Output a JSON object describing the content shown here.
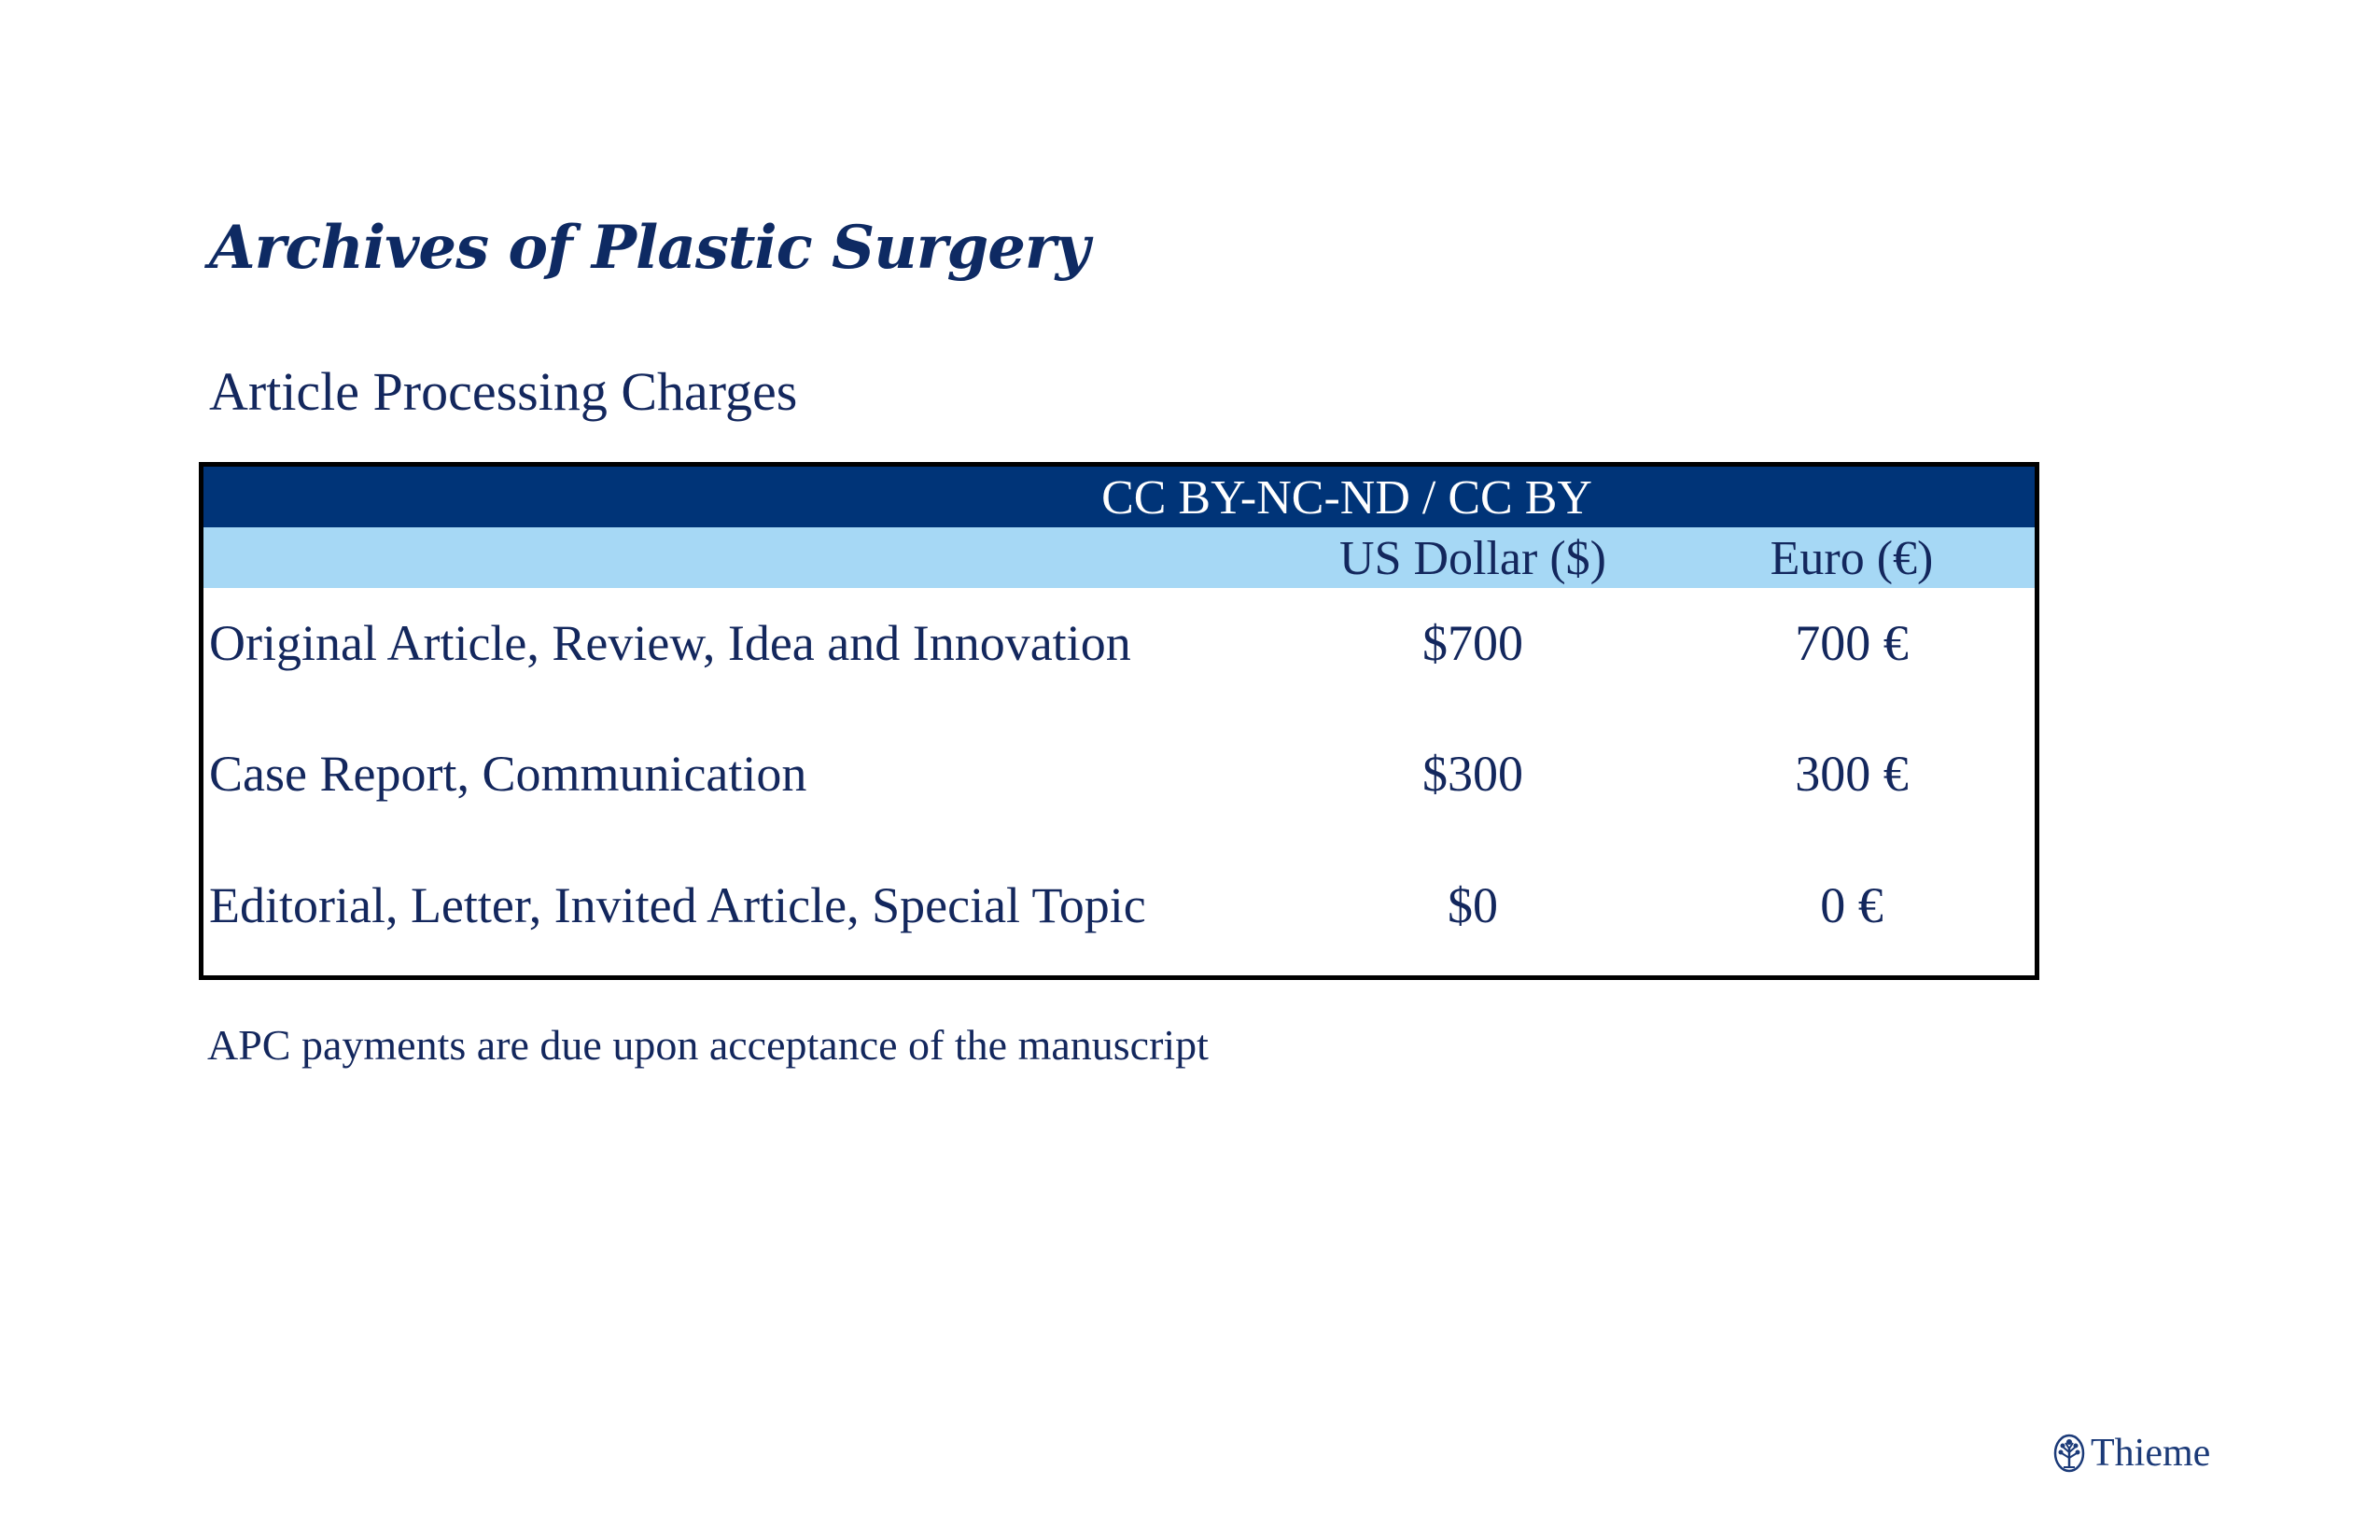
{
  "document": {
    "journal_title": "Archives of Plastic Surgery",
    "subtitle": "Article Processing Charges",
    "footnote": "APC payments are due upon acceptance of the manuscript"
  },
  "table": {
    "license_header": "CC BY-NC-ND / CC BY",
    "currency_headers": {
      "usd": "US Dollar ($)",
      "eur": "Euro (€)"
    },
    "rows": [
      {
        "label": "Original Article, Review, Idea and Innovation",
        "usd": "$700",
        "eur": "700 €"
      },
      {
        "label": "Case Report, Communication",
        "usd": "$300",
        "eur": "300 €"
      },
      {
        "label": "Editorial, Letter, Invited Article, Special Topic",
        "usd": "$0",
        "eur": "0 €"
      }
    ]
  },
  "publisher": {
    "name": "Thieme",
    "logo_icon": "thieme-tree-emblem-icon"
  },
  "colors": {
    "title_navy": "#0e2a63",
    "text_navy": "#13275d",
    "header_dark": "#003478",
    "header_light": "#a6d8f5",
    "border": "#000000"
  }
}
